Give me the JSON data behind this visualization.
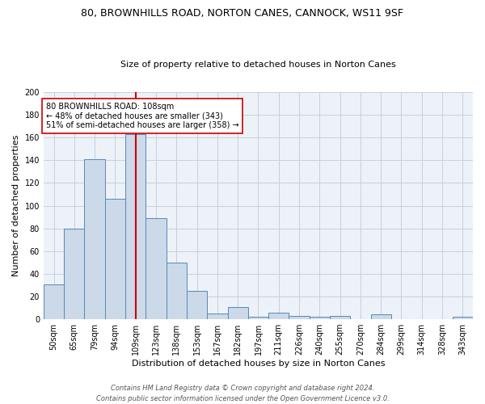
{
  "title": "80, BROWNHILLS ROAD, NORTON CANES, CANNOCK, WS11 9SF",
  "subtitle": "Size of property relative to detached houses in Norton Canes",
  "xlabel": "Distribution of detached houses by size in Norton Canes",
  "ylabel": "Number of detached properties",
  "bar_labels": [
    "50sqm",
    "65sqm",
    "79sqm",
    "94sqm",
    "109sqm",
    "123sqm",
    "138sqm",
    "153sqm",
    "167sqm",
    "182sqm",
    "197sqm",
    "211sqm",
    "226sqm",
    "240sqm",
    "255sqm",
    "270sqm",
    "284sqm",
    "299sqm",
    "314sqm",
    "328sqm",
    "343sqm"
  ],
  "bar_values": [
    31,
    80,
    141,
    106,
    163,
    89,
    50,
    25,
    5,
    11,
    2,
    6,
    3,
    2,
    3,
    0,
    4,
    0,
    0,
    0,
    2
  ],
  "bar_color": "#ccd9e8",
  "bar_edge_color": "#5588bb",
  "vline_x": 4.0,
  "annotation_text": "80 BROWNHILLS ROAD: 108sqm\n← 48% of detached houses are smaller (343)\n51% of semi-detached houses are larger (358) →",
  "annotation_box_color": "white",
  "annotation_box_edge_color": "#cc0000",
  "vline_color": "#cc0000",
  "ylim": [
    0,
    200
  ],
  "yticks": [
    0,
    20,
    40,
    60,
    80,
    100,
    120,
    140,
    160,
    180,
    200
  ],
  "footer": "Contains HM Land Registry data © Crown copyright and database right 2024.\nContains public sector information licensed under the Open Government Licence v3.0.",
  "bg_color": "#edf2f8",
  "grid_color": "#c5cfe0",
  "title_fontsize": 9,
  "subtitle_fontsize": 8,
  "ylabel_fontsize": 8,
  "xlabel_fontsize": 8,
  "tick_fontsize": 7,
  "annotation_fontsize": 7
}
